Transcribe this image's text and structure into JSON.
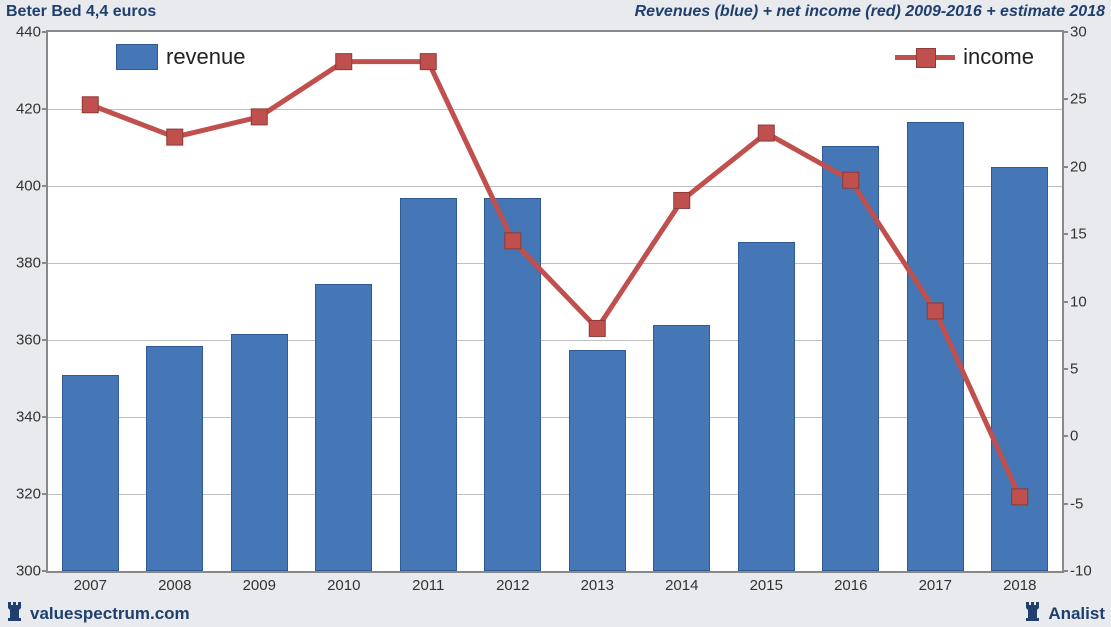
{
  "title_left": "Beter Bed 4,4 euros",
  "title_right": "Revenues (blue) + net income (red) 2009-2016 + estimate 2018",
  "footer_left": "valuespectrum.com",
  "footer_right": "Analist",
  "chart": {
    "type": "bar+line",
    "background_color": "#ffffff",
    "outer_background": "#e8eaed",
    "border_color": "#888888",
    "grid_color": "#bfbfbf",
    "years": [
      "2007",
      "2008",
      "2009",
      "2010",
      "2011",
      "2012",
      "2013",
      "2014",
      "2015",
      "2016",
      "2017",
      "2018"
    ],
    "left_axis": {
      "min": 300,
      "max": 440,
      "step": 20,
      "ticks": [
        300,
        320,
        340,
        360,
        380,
        400,
        420,
        440
      ]
    },
    "right_axis": {
      "min": -10,
      "max": 30,
      "step": 5,
      "ticks": [
        -10,
        -5,
        0,
        5,
        10,
        15,
        20,
        25,
        30
      ]
    },
    "revenue": {
      "label": "revenue",
      "color": "#4576b5",
      "border_color": "#2f5a94",
      "bar_width_ratio": 0.68,
      "values": [
        351,
        358.5,
        361.5,
        374.5,
        397,
        397,
        357.5,
        364,
        385.5,
        410.5,
        416.5,
        405
      ]
    },
    "income": {
      "label": "income",
      "color": "#c0504d",
      "border_color": "#8b3a38",
      "line_width": 5,
      "marker_size": 16,
      "values": [
        24.6,
        22.2,
        23.7,
        27.8,
        27.8,
        14.5,
        8,
        17.5,
        22.5,
        19,
        9.3,
        -4.5
      ]
    },
    "legend": {
      "revenue_pos": "top-left-inside",
      "income_pos": "top-right-inside",
      "font_size": 22
    },
    "tick_fontsize": 15,
    "title_fontsize": 16,
    "title_color": "#1f3f6e"
  }
}
